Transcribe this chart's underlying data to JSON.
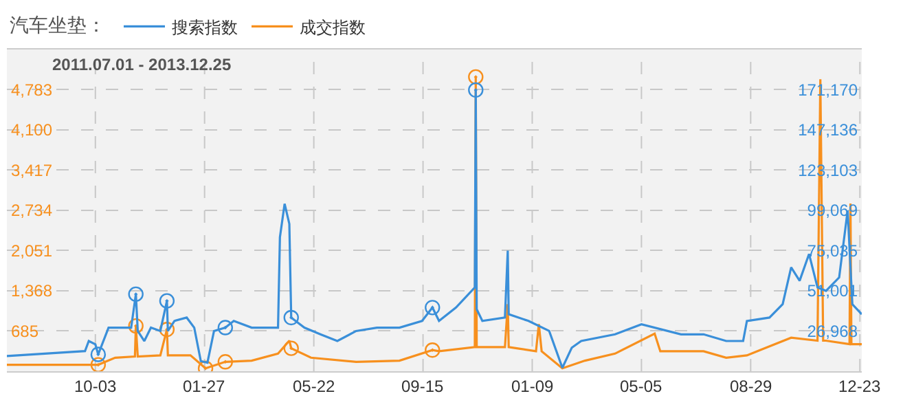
{
  "chart_data": {
    "type": "line",
    "legend_title": "汽车坐垫：",
    "annotations": [
      "2011.07.01 - 2013.12.25"
    ],
    "xlim": [
      "2011-07-01",
      "2013-12-25"
    ],
    "xticks": [
      {
        "value": "2011-10-03",
        "label": "10-03"
      },
      {
        "value": "2012-01-27",
        "label": "01-27"
      },
      {
        "value": "2012-05-22",
        "label": "05-22"
      },
      {
        "value": "2012-09-15",
        "label": "09-15"
      },
      {
        "value": "2013-01-09",
        "label": "01-09"
      },
      {
        "value": "2013-05-05",
        "label": "05-05"
      },
      {
        "value": "2013-08-29",
        "label": "08-29"
      },
      {
        "value": "2013-12-23",
        "label": "12-23"
      }
    ],
    "ylim": [
      0,
      5466
    ],
    "yticks": [
      685,
      {
        "value": 1368,
        "label": "1,368"
      },
      {
        "value": 2051,
        "label": "2,051"
      },
      {
        "value": 2734,
        "label": "2,734"
      },
      {
        "value": 3417,
        "label": "3,417"
      },
      {
        "value": 4100,
        "label": "4,100"
      },
      {
        "value": 4783,
        "label": "4,783"
      }
    ],
    "y2lim": [
      2934,
      195204
    ],
    "y2ticks": [
      {
        "value": 26968,
        "label": "26,968"
      },
      {
        "value": 51001,
        "label": "51,001"
      },
      {
        "value": 75035,
        "label": "75,035"
      },
      {
        "value": 99069,
        "label": "99,069"
      },
      {
        "value": 123103,
        "label": "123,103"
      },
      {
        "value": 147136,
        "label": "147,136"
      },
      {
        "value": 171170,
        "label": "171,170"
      }
    ],
    "grid": true,
    "legend": "top left",
    "series": [
      {
        "name": "搜索指数",
        "color": "#3a8fd9",
        "axis": "y2",
        "x": [
          "2011-07-01",
          "2011-09-22",
          "2011-09-26",
          "2011-10-03",
          "2011-10-06",
          "2011-10-17",
          "2011-10-30",
          "2011-11-10",
          "2011-11-15",
          "2011-11-17",
          "2011-11-24",
          "2011-12-01",
          "2011-12-11",
          "2011-12-18",
          "2011-12-19",
          "2011-12-26",
          "2012-01-08",
          "2012-01-16",
          "2012-01-23",
          "2012-01-30",
          "2012-02-06",
          "2012-02-18",
          "2012-02-27",
          "2012-03-17",
          "2012-04-05",
          "2012-04-14",
          "2012-04-16",
          "2012-04-21",
          "2012-04-26",
          "2012-04-28",
          "2012-05-12",
          "2012-05-29",
          "2012-06-16",
          "2012-07-06",
          "2012-07-28",
          "2012-08-21",
          "2012-09-14",
          "2012-09-25",
          "2012-10-02",
          "2012-10-20",
          "2012-11-09",
          "2012-11-10",
          "2012-11-11",
          "2012-11-17",
          "2012-12-11",
          "2012-12-14",
          "2012-12-15",
          "2013-01-05",
          "2013-01-27",
          "2013-02-10",
          "2013-02-20",
          "2013-03-02",
          "2013-04-07",
          "2013-05-05",
          "2013-06-16",
          "2013-07-10",
          "2013-08-03",
          "2013-08-21",
          "2013-08-25",
          "2013-09-18",
          "2013-10-02",
          "2013-10-11",
          "2013-10-20",
          "2013-10-30",
          "2013-11-08",
          "2013-11-17",
          "2013-12-01",
          "2013-12-10",
          "2013-12-15",
          "2013-12-25"
        ],
        "values": [
          12000,
          15000,
          21000,
          19000,
          13000,
          29000,
          29000,
          29000,
          49000,
          27000,
          21000,
          29000,
          27000,
          45000,
          27000,
          33000,
          35000,
          29000,
          9000,
          8000,
          27000,
          29000,
          33000,
          29000,
          29000,
          29000,
          83000,
          103000,
          91000,
          35000,
          29000,
          25000,
          21000,
          27000,
          29000,
          29000,
          33000,
          41000,
          33000,
          41000,
          53000,
          171000,
          40000,
          33000,
          35000,
          75000,
          37000,
          33000,
          27000,
          5000,
          17000,
          21000,
          25000,
          31000,
          25000,
          25000,
          21000,
          21000,
          33000,
          35000,
          43000,
          65000,
          57000,
          73000,
          53000,
          51000,
          59000,
          99000,
          43000,
          37000
        ]
      },
      {
        "name": "成交指数",
        "color": "#f7901e",
        "x": [
          "2011-07-01",
          "2011-09-22",
          "2011-10-06",
          "2011-10-24",
          "2011-11-14",
          "2011-11-15",
          "2011-11-17",
          "2011-12-11",
          "2011-12-18",
          "2011-12-19",
          "2012-01-12",
          "2012-01-28",
          "2012-02-18",
          "2012-03-17",
          "2012-04-14",
          "2012-04-26",
          "2012-04-28",
          "2012-05-19",
          "2012-07-06",
          "2012-08-21",
          "2012-09-25",
          "2012-10-02",
          "2012-11-09",
          "2012-11-10",
          "2012-11-11",
          "2012-12-11",
          "2012-12-14",
          "2012-12-15",
          "2013-01-13",
          "2013-01-16",
          "2013-01-19",
          "2013-02-10",
          "2013-03-06",
          "2013-04-07",
          "2013-05-19",
          "2013-05-25",
          "2013-07-10",
          "2013-08-03",
          "2013-08-25",
          "2013-10-11",
          "2013-11-08",
          "2013-11-11",
          "2013-11-14",
          "2013-11-17",
          "2013-12-12",
          "2013-12-13",
          "2013-12-14",
          "2013-12-25"
        ],
        "values": [
          110,
          110,
          110,
          230,
          250,
          770,
          250,
          270,
          710,
          270,
          270,
          50,
          160,
          180,
          300,
          520,
          390,
          230,
          160,
          180,
          360,
          340,
          410,
          5000,
          410,
          410,
          1140,
          410,
          340,
          800,
          340,
          50,
          180,
          300,
          640,
          340,
          340,
          230,
          270,
          570,
          520,
          4960,
          520,
          520,
          460,
          2850,
          460,
          460
        ]
      },
      {
        "type": "scatter",
        "marker": "circle",
        "color": "#3a8fd9",
        "axis": "y2",
        "x": [
          "2011-10-06",
          "2011-11-15",
          "2011-12-18",
          "2012-02-18",
          "2012-04-28",
          "2012-09-25",
          "2012-11-10"
        ],
        "values": [
          13000,
          49000,
          45000,
          29000,
          35000,
          41000,
          171000
        ]
      },
      {
        "type": "scatter",
        "marker": "circle",
        "color": "#f7901e",
        "x": [
          "2011-10-06",
          "2011-11-15",
          "2011-12-18",
          "2012-01-28",
          "2012-02-18",
          "2012-04-28",
          "2012-09-25",
          "2012-11-10"
        ],
        "values": [
          110,
          770,
          710,
          50,
          160,
          390,
          360,
          5000
        ]
      }
    ]
  }
}
